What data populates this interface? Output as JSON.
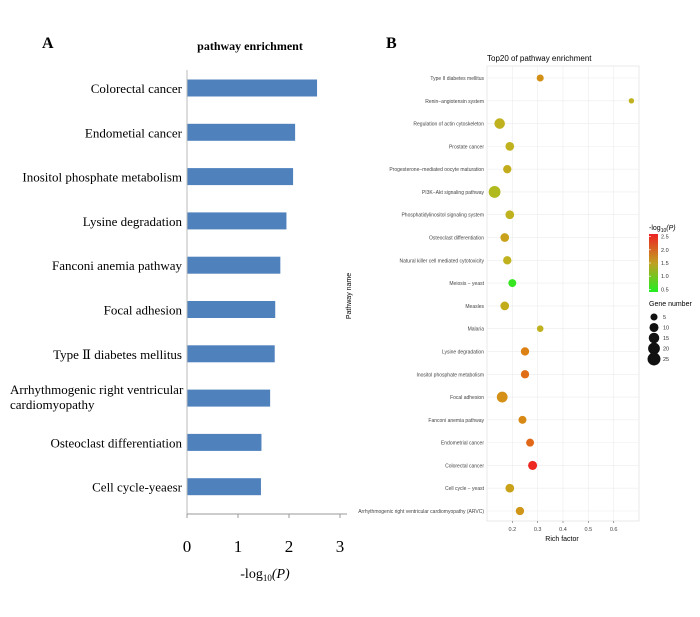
{
  "panel_a": {
    "letter": "A",
    "chart_data": {
      "type": "bar",
      "orientation": "horizontal",
      "title": "pathway enrichment",
      "xlabel_prefix": "-log",
      "xlabel_sub": "10",
      "xlabel_suffix": "(P)",
      "xlim": [
        0,
        3
      ],
      "xticks": [
        "0",
        "1",
        "2",
        "3"
      ],
      "categories": [
        "Colorectal cancer",
        "Endometial cancer",
        "Inositol phosphate metabolism",
        "Lysine degradation",
        "Fanconi anemia pathway",
        "Focal adhesion",
        "Type Ⅱ diabetes mellitus",
        "Arrhythmogenic right ventricular cardiomyopathy",
        "Osteoclast differentiation",
        "Cell cycle-yeaesr"
      ],
      "category_lines": [
        [
          "Colorectal cancer"
        ],
        [
          "Endometial cancer"
        ],
        [
          "Inositol phosphate metabolism"
        ],
        [
          "Lysine degradation"
        ],
        [
          "Fanconi anemia pathway"
        ],
        [
          "Focal adhesion"
        ],
        [
          "Type Ⅱ diabetes mellitus"
        ],
        [
          "Arrhythmogenic right ventricular",
          "cardiomyopathy"
        ],
        [
          "Osteoclast differentiation"
        ],
        [
          "Cell cycle-yeaesr"
        ]
      ],
      "values": [
        2.55,
        2.12,
        2.08,
        1.95,
        1.83,
        1.73,
        1.72,
        1.63,
        1.46,
        1.45
      ],
      "bar_color": "#4f81bd"
    }
  },
  "panel_b": {
    "letter": "B",
    "chart_data": {
      "type": "scatter",
      "title": "Top20 of pathway enrichment",
      "xlabel": "Rich factor",
      "ylabel": "Pathway name",
      "xlim": [
        0.1,
        0.7
      ],
      "xticks": [
        0.2,
        0.3,
        0.4,
        0.5,
        0.6
      ],
      "xtick_labels": [
        "0.2",
        "0.3",
        "0.4",
        "0.5",
        "0.6"
      ],
      "grid": true,
      "points": [
        {
          "pathway": "Type II diabetes mellitus",
          "rich_factor": 0.31,
          "neg_log10_p": 1.72,
          "gene_number": 5
        },
        {
          "pathway": "Renin−angiotensin system",
          "rich_factor": 0.67,
          "neg_log10_p": 1.2,
          "gene_number": 2
        },
        {
          "pathway": "Regulation of actin cytoskeleton",
          "rich_factor": 0.15,
          "neg_log10_p": 1.2,
          "gene_number": 15
        },
        {
          "pathway": "Prostate cancer",
          "rich_factor": 0.19,
          "neg_log10_p": 1.2,
          "gene_number": 9
        },
        {
          "pathway": "Progesterone−mediated oocyte maturation",
          "rich_factor": 0.18,
          "neg_log10_p": 1.3,
          "gene_number": 8
        },
        {
          "pathway": "PI3K−Akt signaling pathway",
          "rich_factor": 0.13,
          "neg_log10_p": 1.1,
          "gene_number": 20
        },
        {
          "pathway": "Phosphatidylinositol signaling system",
          "rich_factor": 0.19,
          "neg_log10_p": 1.2,
          "gene_number": 9
        },
        {
          "pathway": "Osteoclast differentiation",
          "rich_factor": 0.17,
          "neg_log10_p": 1.46,
          "gene_number": 9
        },
        {
          "pathway": "Natural killer cell mediated cytotoxicity",
          "rich_factor": 0.18,
          "neg_log10_p": 1.2,
          "gene_number": 8
        },
        {
          "pathway": "Meiosis − yeast",
          "rich_factor": 0.2,
          "neg_log10_p": 0.5,
          "gene_number": 7
        },
        {
          "pathway": "Measles",
          "rich_factor": 0.17,
          "neg_log10_p": 1.3,
          "gene_number": 9
        },
        {
          "pathway": "Malaria",
          "rich_factor": 0.31,
          "neg_log10_p": 1.2,
          "gene_number": 4
        },
        {
          "pathway": "Lysine degradation",
          "rich_factor": 0.25,
          "neg_log10_p": 1.95,
          "gene_number": 8
        },
        {
          "pathway": "Inositol phosphate metabolism",
          "rich_factor": 0.25,
          "neg_log10_p": 2.08,
          "gene_number": 8
        },
        {
          "pathway": "Focal adhesion",
          "rich_factor": 0.16,
          "neg_log10_p": 1.73,
          "gene_number": 16
        },
        {
          "pathway": "Fanconi anemia pathway",
          "rich_factor": 0.24,
          "neg_log10_p": 1.83,
          "gene_number": 7
        },
        {
          "pathway": "Endometrial cancer",
          "rich_factor": 0.27,
          "neg_log10_p": 2.12,
          "gene_number": 7
        },
        {
          "pathway": "Colorectal cancer",
          "rich_factor": 0.28,
          "neg_log10_p": 2.55,
          "gene_number": 10
        },
        {
          "pathway": "Cell cycle − yeast",
          "rich_factor": 0.19,
          "neg_log10_p": 1.45,
          "gene_number": 9
        },
        {
          "pathway": "Arrhythmogenic right ventricular cardiomyopathy (ARVC)",
          "rich_factor": 0.23,
          "neg_log10_p": 1.63,
          "gene_number": 8
        }
      ],
      "color_legend": {
        "title_prefix": "-log",
        "title_sub": "10",
        "title_suffix": "(P)",
        "ticks": [
          "2.5",
          "2.0",
          "1.5",
          "1.0",
          "0.5"
        ],
        "tick_values": [
          2.5,
          2.0,
          1.5,
          1.0,
          0.5
        ],
        "range": [
          0.4,
          2.6
        ],
        "low_color": "#22ee22",
        "high_color": "#ee2222"
      },
      "size_legend": {
        "title": "Gene number",
        "ticks": [
          "5",
          "10",
          "15",
          "20",
          "25"
        ],
        "tick_values": [
          5,
          10,
          15,
          20,
          25
        ]
      },
      "legend_placement": "right"
    }
  }
}
